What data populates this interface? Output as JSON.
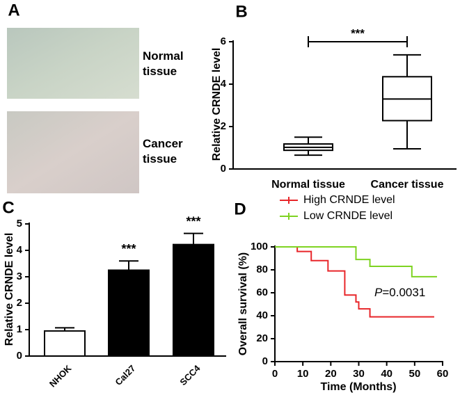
{
  "chart_data": [
    {
      "type": "image",
      "panel": "A",
      "labels": [
        "Normal tissue",
        "Cancer tissue"
      ]
    },
    {
      "type": "box",
      "panel": "B",
      "ylabel": "Relative CRNDE level",
      "categories": [
        "Normal tissue",
        "Cancer tissue"
      ],
      "boxes": [
        {
          "min": 0.65,
          "q1": 0.88,
          "median": 1.02,
          "q3": 1.18,
          "max": 1.5
        },
        {
          "min": 0.95,
          "q1": 2.28,
          "median": 3.3,
          "q3": 4.35,
          "max": 5.38
        }
      ],
      "annotation": "***",
      "ylim": [
        0,
        6
      ],
      "yticks": [
        0,
        2,
        4,
        6
      ]
    },
    {
      "type": "bar",
      "panel": "C",
      "ylabel": "Relative CRNDE level",
      "categories": [
        "NHOK",
        "Cal27",
        "SCC4"
      ],
      "values": [
        0.95,
        3.25,
        4.22
      ],
      "errors": [
        0.12,
        0.35,
        0.42
      ],
      "colors": [
        "#ffffff",
        "#000000",
        "#000000"
      ],
      "annotations": [
        null,
        "***",
        "***"
      ],
      "ylim": [
        0,
        5
      ],
      "yticks": [
        0,
        1,
        2,
        3,
        4,
        5
      ]
    },
    {
      "type": "step",
      "panel": "D",
      "xlabel": "Time (Months)",
      "ylabel": "Overall survival (%)",
      "series": [
        {
          "name": "High CRNDE level",
          "color": "#e8262a",
          "x": [
            0,
            8,
            13,
            19,
            25,
            29,
            30,
            34,
            57
          ],
          "values": [
            100,
            96,
            88,
            79,
            58,
            52,
            46,
            39,
            39
          ]
        },
        {
          "name": "Low CRNDE level",
          "color": "#7ed321",
          "x": [
            0,
            29,
            34,
            49,
            58
          ],
          "values": [
            100,
            89,
            83,
            74,
            74
          ]
        }
      ],
      "p_label": "P",
      "p_value": "=0.0031",
      "xlim": [
        0,
        60
      ],
      "xticks": [
        0,
        10,
        20,
        30,
        40,
        50,
        60
      ],
      "ylim": [
        0,
        100
      ],
      "yticks": [
        0,
        20,
        40,
        60,
        80,
        100
      ]
    }
  ]
}
